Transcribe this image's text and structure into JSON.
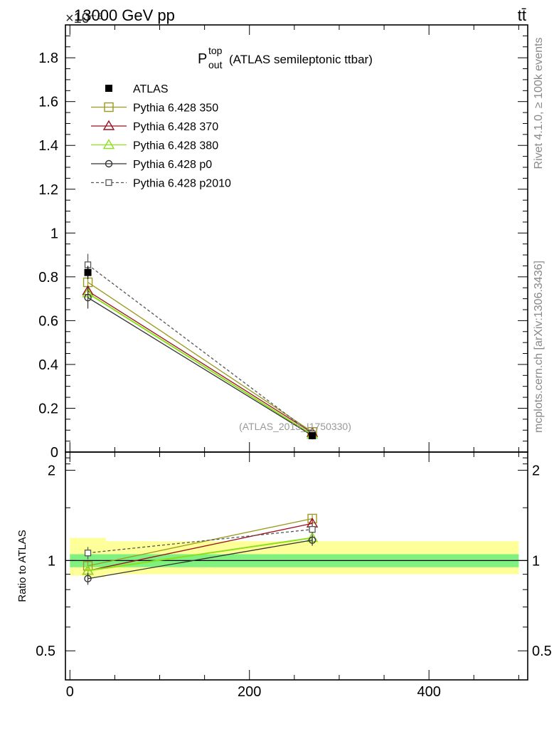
{
  "header": {
    "energy_label": "13000 GeV pp",
    "process_label": "tt̄",
    "exponent_label": "×10⁻⁶"
  },
  "side_text": {
    "rivet": "Rivet 4.1.0, ≥ 100k events",
    "mcplots": "mcplots.cern.ch [arXiv:1306.3436]"
  },
  "colors": {
    "atlas": "#000000",
    "p350": "#9a9a1f",
    "p370": "#9b1020",
    "p380": "#8be01c",
    "p0": "#333333",
    "p2010": "#555555",
    "band_inner": "#80f080",
    "band_outer": "#ffff99"
  },
  "chart_data": {
    "type": "line",
    "title": "P_out^top (ATLAS semileptonic ttbar)",
    "title_main": "P",
    "title_sup": "top",
    "title_sub": "out",
    "title_rest": "(ATLAS semileptonic ttbar)",
    "watermark": "(ATLAS_2013_I1750330)",
    "x_range": [
      -5,
      510
    ],
    "x_ticks": [
      0,
      200,
      400
    ],
    "x_tick_labels": [
      "0",
      "200",
      "400"
    ],
    "main": {
      "y_range": [
        0,
        1.95
      ],
      "y_ticks": [
        0,
        0.2,
        0.4,
        0.6,
        0.8,
        1,
        1.2,
        1.4,
        1.6,
        1.8
      ],
      "y_tick_labels": [
        "0",
        "0.2",
        "0.4",
        "0.6",
        "0.8",
        "1",
        "1.2",
        "1.4",
        "1.6",
        "1.8"
      ],
      "y_unit_scale": "×10⁻⁶"
    },
    "ratio": {
      "ylabel": "Ratio to ATLAS",
      "y_range": [
        0.4,
        2.3
      ],
      "y_scale": "log",
      "y_ticks": [
        0.5,
        1,
        2
      ],
      "y_tick_labels": [
        "0.5",
        "1",
        "2"
      ],
      "band_inner": [
        [
          0,
          50,
          0.95,
          1.05
        ],
        [
          50,
          500,
          0.95,
          1.05
        ]
      ],
      "band_outer": [
        [
          0,
          20,
          0.89,
          1.19
        ],
        [
          20,
          40,
          0.88,
          1.19
        ],
        [
          40,
          500,
          0.9,
          1.16
        ]
      ]
    },
    "x": [
      20,
      270
    ],
    "series": [
      {
        "name": "ATLAS",
        "key": "atlas",
        "marker": "filled-square",
        "line": "none",
        "values": [
          0.82,
          0.075
        ],
        "errors": [
          0.03,
          0.005
        ],
        "ratio": [
          1.0,
          1.0
        ],
        "ratio_errors": [
          0.0,
          0.0
        ]
      },
      {
        "name": "Pythia 6.428 350",
        "key": "p350",
        "marker": "open-square",
        "line": "solid",
        "values": [
          0.775,
          0.092
        ],
        "errors": [
          0.02,
          0.004
        ],
        "ratio": [
          0.96,
          1.38
        ],
        "ratio_errors": [
          0.03,
          0.04
        ]
      },
      {
        "name": "Pythia 6.428 370",
        "key": "p370",
        "marker": "open-triangle",
        "line": "solid",
        "values": [
          0.735,
          0.088
        ],
        "errors": [
          0.02,
          0.004
        ],
        "ratio": [
          0.925,
          1.33
        ],
        "ratio_errors": [
          0.03,
          0.04
        ]
      },
      {
        "name": "Pythia 6.428 380",
        "key": "p380",
        "marker": "open-triangle",
        "line": "solid",
        "values": [
          0.725,
          0.079
        ],
        "errors": [
          0.02,
          0.004
        ],
        "ratio": [
          0.925,
          1.19
        ],
        "ratio_errors": [
          0.03,
          0.04
        ]
      },
      {
        "name": "Pythia 6.428 p0",
        "key": "p0",
        "marker": "open-circle",
        "line": "solid",
        "values": [
          0.705,
          0.075
        ],
        "errors": [
          0.05,
          0.005
        ],
        "ratio": [
          0.87,
          1.17
        ],
        "ratio_errors": [
          0.04,
          0.05
        ]
      },
      {
        "name": "Pythia 6.428 p2010",
        "key": "p2010",
        "marker": "small-open-square",
        "line": "dashed",
        "values": [
          0.855,
          0.083
        ],
        "errors": [
          0.05,
          0.005
        ],
        "ratio": [
          1.06,
          1.27
        ],
        "ratio_errors": [
          0.05,
          0.04
        ]
      }
    ]
  }
}
